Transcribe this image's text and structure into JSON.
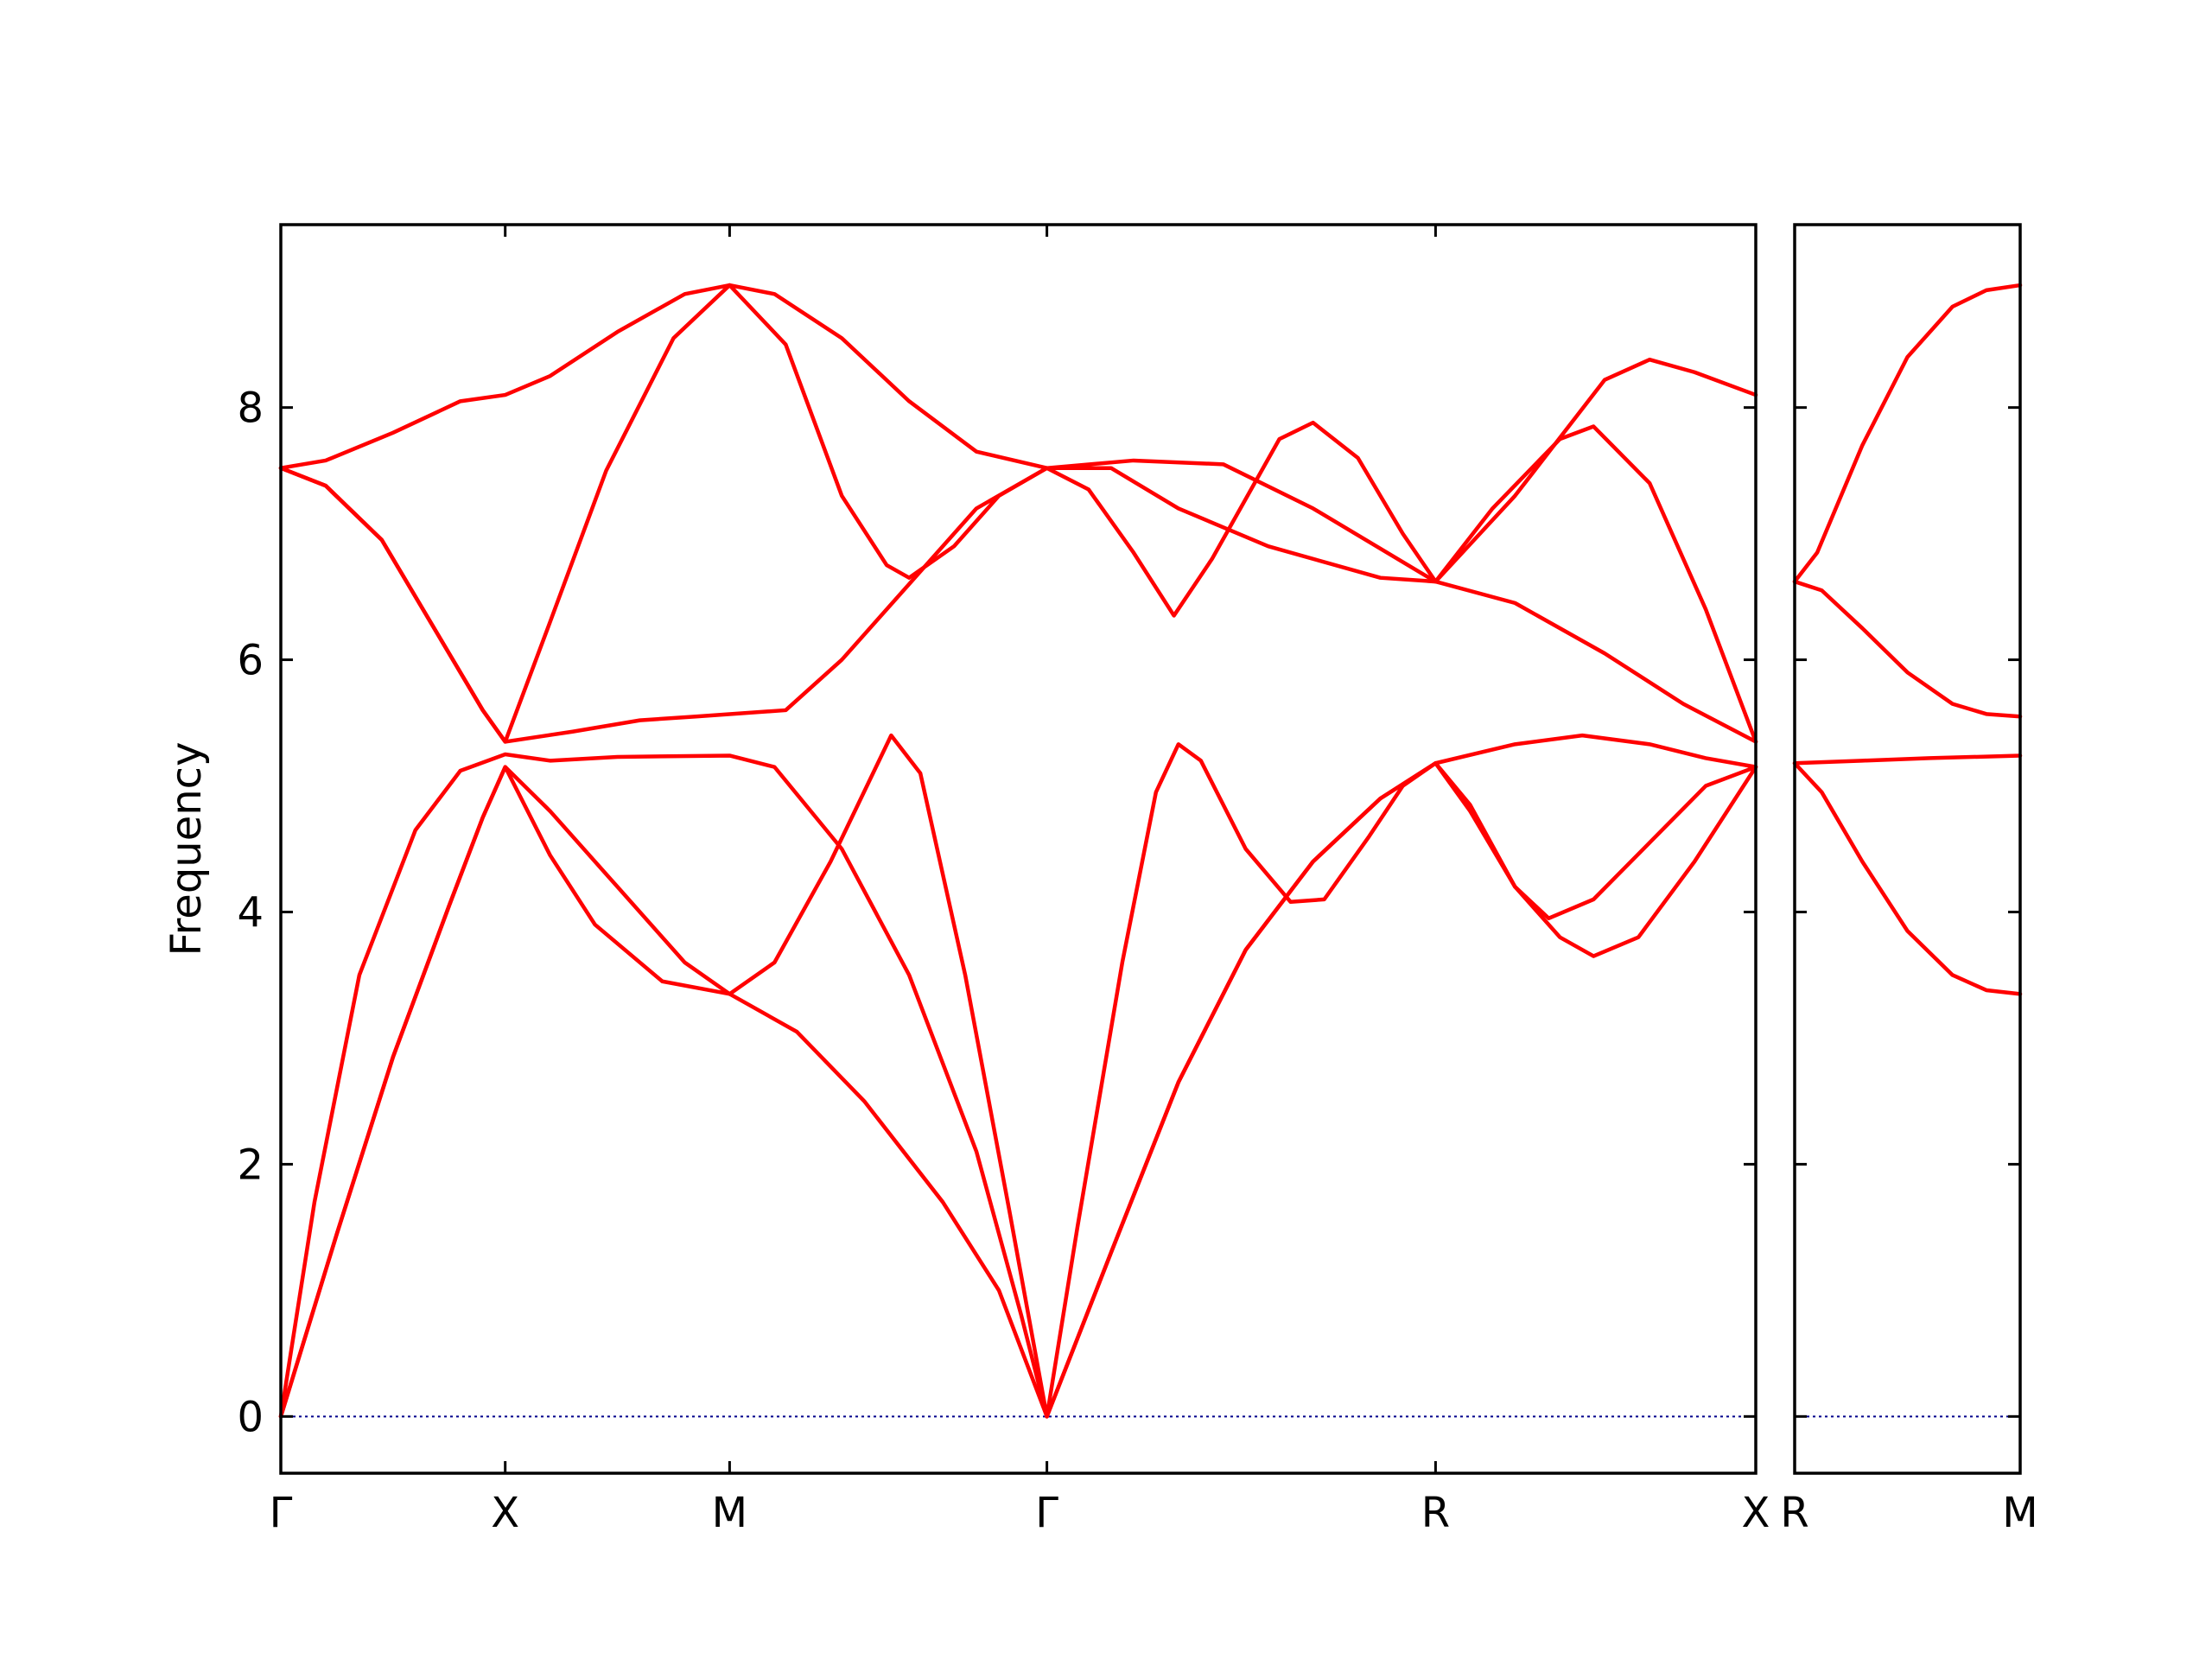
{
  "chart_data": {
    "type": "line",
    "ylabel": "Frequency",
    "ylim": [
      -0.45,
      9.45
    ],
    "yticks": [
      0,
      2,
      4,
      6,
      8
    ],
    "line_color": "#ff0000",
    "zero_line_color": "#00008b",
    "panels": [
      {
        "id": "main",
        "x_range": [
          0,
          6.573
        ],
        "x_ticks": [
          {
            "x": 0,
            "label": "Γ"
          },
          {
            "x": 1.0,
            "label": "X"
          },
          {
            "x": 2.0,
            "label": "M"
          },
          {
            "x": 3.414,
            "label": "Γ"
          },
          {
            "x": 5.146,
            "label": "R"
          },
          {
            "x": 6.573,
            "label": "X"
          }
        ],
        "series": [
          {
            "name": "",
            "points": [
              [
                0,
                7.52
              ],
              [
                0.2,
                7.58
              ],
              [
                0.5,
                7.8
              ],
              [
                0.8,
                8.05
              ],
              [
                1,
                8.1
              ],
              [
                1.2,
                8.25
              ],
              [
                1.5,
                8.6
              ],
              [
                1.8,
                8.9
              ],
              [
                2,
                8.97
              ],
              [
                2.2,
                8.9
              ],
              [
                2.5,
                8.55
              ],
              [
                2.8,
                8.05
              ],
              [
                3.1,
                7.65
              ],
              [
                3.414,
                7.52
              ],
              [
                3.8,
                7.58
              ],
              [
                4.2,
                7.55
              ],
              [
                4.6,
                7.2
              ],
              [
                5.146,
                6.62
              ],
              [
                5.5,
                7.3
              ],
              [
                5.9,
                8.22
              ],
              [
                6.1,
                8.38
              ],
              [
                6.3,
                8.28
              ],
              [
                6.573,
                8.1
              ]
            ]
          },
          {
            "name": "",
            "points": [
              [
                0,
                7.52
              ],
              [
                0.2,
                7.38
              ],
              [
                0.45,
                6.95
              ],
              [
                0.7,
                6.2
              ],
              [
                0.9,
                5.6
              ],
              [
                1,
                5.35
              ],
              [
                1.2,
                6.3
              ],
              [
                1.45,
                7.5
              ],
              [
                1.75,
                8.55
              ],
              [
                2,
                8.97
              ],
              [
                2.25,
                8.5
              ],
              [
                2.5,
                7.3
              ],
              [
                2.7,
                6.75
              ],
              [
                2.8,
                6.65
              ],
              [
                3.0,
                6.9
              ],
              [
                3.2,
                7.3
              ],
              [
                3.414,
                7.52
              ],
              [
                3.6,
                7.35
              ],
              [
                3.8,
                6.85
              ],
              [
                3.98,
                6.35
              ],
              [
                4.15,
                6.8
              ],
              [
                4.45,
                7.75
              ],
              [
                4.6,
                7.88
              ],
              [
                4.8,
                7.6
              ],
              [
                5.0,
                7.0
              ],
              [
                5.146,
                6.62
              ],
              [
                5.4,
                7.2
              ],
              [
                5.7,
                7.75
              ],
              [
                5.85,
                7.85
              ],
              [
                6.1,
                7.4
              ],
              [
                6.35,
                6.4
              ],
              [
                6.573,
                5.35
              ]
            ]
          },
          {
            "name": "",
            "points": [
              [
                0,
                7.52
              ],
              [
                0.2,
                7.38
              ],
              [
                0.45,
                6.95
              ],
              [
                0.7,
                6.2
              ],
              [
                0.9,
                5.6
              ],
              [
                1,
                5.35
              ],
              [
                1.3,
                5.43
              ],
              [
                1.6,
                5.52
              ],
              [
                1.85,
                5.55
              ],
              [
                2.25,
                5.6
              ],
              [
                2.5,
                6.0
              ],
              [
                2.8,
                6.6
              ],
              [
                3.1,
                7.2
              ],
              [
                3.414,
                7.52
              ],
              [
                3.7,
                7.52
              ],
              [
                4.0,
                7.2
              ],
              [
                4.4,
                6.9
              ],
              [
                4.9,
                6.65
              ],
              [
                5.146,
                6.62
              ],
              [
                5.5,
                6.45
              ],
              [
                5.9,
                6.05
              ],
              [
                6.25,
                5.65
              ],
              [
                6.573,
                5.35
              ]
            ]
          },
          {
            "name": "",
            "points": [
              [
                0,
                0
              ],
              [
                0.15,
                1.7
              ],
              [
                0.35,
                3.5
              ],
              [
                0.6,
                4.65
              ],
              [
                0.8,
                5.12
              ],
              [
                1,
                5.25
              ],
              [
                1.2,
                5.2
              ],
              [
                1.5,
                5.23
              ],
              [
                2,
                5.24
              ],
              [
                2.2,
                5.15
              ],
              [
                2.5,
                4.5
              ],
              [
                2.8,
                3.5
              ],
              [
                3.1,
                2.1
              ],
              [
                3.3,
                0.8
              ],
              [
                3.414,
                0
              ]
            ]
          },
          {
            "name": "",
            "points": [
              [
                0,
                0
              ],
              [
                0.25,
                1.45
              ],
              [
                0.5,
                2.85
              ],
              [
                0.75,
                4.05
              ],
              [
                0.9,
                4.75
              ],
              [
                1,
                5.15
              ],
              [
                1.2,
                4.45
              ],
              [
                1.4,
                3.9
              ],
              [
                1.7,
                3.45
              ],
              [
                2,
                3.35
              ],
              [
                2.2,
                3.6
              ],
              [
                2.45,
                4.4
              ],
              [
                2.72,
                5.4
              ],
              [
                2.85,
                5.1
              ],
              [
                3.05,
                3.5
              ],
              [
                3.25,
                1.6
              ],
              [
                3.414,
                0
              ]
            ]
          },
          {
            "name": "",
            "points": [
              [
                0,
                0
              ],
              [
                0.25,
                1.45
              ],
              [
                0.5,
                2.85
              ],
              [
                0.75,
                4.05
              ],
              [
                0.9,
                4.75
              ],
              [
                1,
                5.15
              ],
              [
                1.2,
                4.8
              ],
              [
                1.5,
                4.2
              ],
              [
                1.8,
                3.6
              ],
              [
                2,
                3.35
              ],
              [
                2.3,
                3.05
              ],
              [
                2.6,
                2.5
              ],
              [
                2.95,
                1.7
              ],
              [
                3.2,
                1.0
              ],
              [
                3.414,
                0
              ]
            ]
          },
          {
            "name": "",
            "points": [
              [
                3.414,
                0
              ],
              [
                3.55,
                1.5
              ],
              [
                3.75,
                3.6
              ],
              [
                3.9,
                4.95
              ],
              [
                4.0,
                5.33
              ],
              [
                4.1,
                5.2
              ],
              [
                4.3,
                4.5
              ],
              [
                4.5,
                4.08
              ],
              [
                4.65,
                4.1
              ],
              [
                4.85,
                4.6
              ],
              [
                5.0,
                5.0
              ],
              [
                5.146,
                5.18
              ],
              [
                5.3,
                4.8
              ],
              [
                5.5,
                4.2
              ],
              [
                5.65,
                3.95
              ],
              [
                5.85,
                4.1
              ],
              [
                6.1,
                4.55
              ],
              [
                6.35,
                5.0
              ],
              [
                6.573,
                5.15
              ]
            ]
          },
          {
            "name": "",
            "points": [
              [
                3.414,
                0
              ],
              [
                3.7,
                1.3
              ],
              [
                4.0,
                2.65
              ],
              [
                4.3,
                3.7
              ],
              [
                4.6,
                4.4
              ],
              [
                4.9,
                4.9
              ],
              [
                5.146,
                5.18
              ],
              [
                5.3,
                4.85
              ],
              [
                5.5,
                4.2
              ],
              [
                5.7,
                3.8
              ],
              [
                5.85,
                3.65
              ],
              [
                6.05,
                3.8
              ],
              [
                6.3,
                4.4
              ],
              [
                6.573,
                5.15
              ]
            ]
          },
          {
            "name": "",
            "points": [
              [
                3.414,
                0
              ],
              [
                3.7,
                1.3
              ],
              [
                4.0,
                2.65
              ],
              [
                4.3,
                3.7
              ],
              [
                4.6,
                4.4
              ],
              [
                4.9,
                4.9
              ],
              [
                5.146,
                5.18
              ],
              [
                5.5,
                5.33
              ],
              [
                5.8,
                5.4
              ],
              [
                6.1,
                5.33
              ],
              [
                6.35,
                5.22
              ],
              [
                6.573,
                5.15
              ]
            ]
          }
        ]
      },
      {
        "id": "side",
        "x_range": [
          0,
          1.0
        ],
        "x_ticks": [
          {
            "x": 0,
            "label": "R"
          },
          {
            "x": 1.0,
            "label": "M"
          }
        ],
        "series": [
          {
            "name": "",
            "points": [
              [
                0,
                6.62
              ],
              [
                0.1,
                6.85
              ],
              [
                0.3,
                7.7
              ],
              [
                0.5,
                8.4
              ],
              [
                0.7,
                8.8
              ],
              [
                0.85,
                8.93
              ],
              [
                1,
                8.97
              ]
            ]
          },
          {
            "name": "",
            "points": [
              [
                0,
                6.62
              ],
              [
                0.12,
                6.55
              ],
              [
                0.3,
                6.25
              ],
              [
                0.5,
                5.9
              ],
              [
                0.7,
                5.65
              ],
              [
                0.85,
                5.57
              ],
              [
                1,
                5.55
              ]
            ]
          },
          {
            "name": "",
            "points": [
              [
                0,
                5.18
              ],
              [
                0.3,
                5.2
              ],
              [
                0.6,
                5.22
              ],
              [
                1,
                5.24
              ]
            ]
          },
          {
            "name": "",
            "points": [
              [
                0,
                5.18
              ],
              [
                0.12,
                4.95
              ],
              [
                0.3,
                4.4
              ],
              [
                0.5,
                3.85
              ],
              [
                0.7,
                3.5
              ],
              [
                0.85,
                3.38
              ],
              [
                1,
                3.35
              ]
            ]
          }
        ]
      }
    ]
  }
}
